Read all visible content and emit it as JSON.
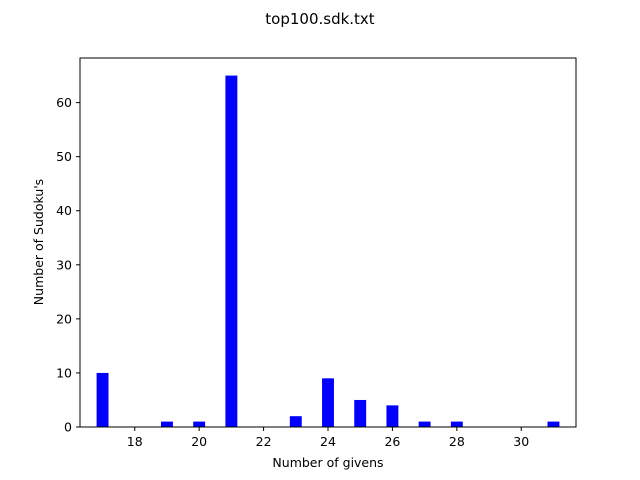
{
  "chart_data": {
    "type": "bar",
    "title": "top100.sdk.txt",
    "xlabel": "Number of givens",
    "ylabel": "Number of Sudoku's",
    "x": [
      17,
      19,
      20,
      21,
      23,
      24,
      25,
      26,
      27,
      28,
      31
    ],
    "values": [
      10,
      1,
      1,
      65,
      2,
      9,
      5,
      4,
      1,
      1,
      1
    ],
    "xlim": [
      16.3,
      31.7
    ],
    "ylim": [
      0,
      68.25
    ],
    "xticks": [
      18,
      20,
      22,
      24,
      26,
      28,
      30
    ],
    "yticks": [
      0,
      10,
      20,
      30,
      40,
      50,
      60
    ],
    "bar_color": "#0000ff",
    "grid": false,
    "legend": "none"
  }
}
